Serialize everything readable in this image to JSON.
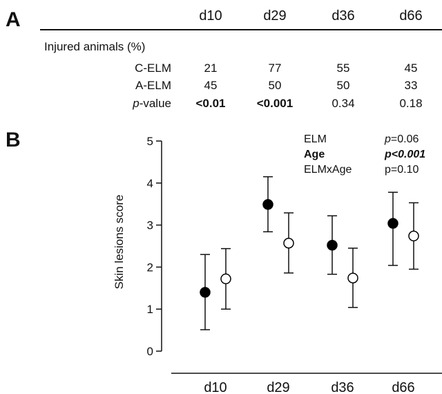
{
  "table": {
    "panel_letter": "A",
    "columns": [
      "d10",
      "d29",
      "d36",
      "d66"
    ],
    "section_label": "Injured animals (%)",
    "rows": [
      {
        "label": "C-ELM",
        "values": [
          "21",
          "77",
          "55",
          "45"
        ],
        "bold": [
          false,
          false,
          false,
          false
        ]
      },
      {
        "label": "A-ELM",
        "values": [
          "45",
          "50",
          "50",
          "33"
        ],
        "bold": [
          false,
          false,
          false,
          false
        ]
      },
      {
        "label_prefix": "p",
        "label_suffix": "-value",
        "values": [
          "<0.01",
          "<0.001",
          "0.34",
          "0.18"
        ],
        "bold": [
          true,
          true,
          false,
          false
        ]
      }
    ]
  },
  "stats": {
    "rows": [
      {
        "term": "ELM",
        "p_prefix": "p",
        "p_value": "=0.06",
        "bold": false,
        "italic_prefix": true
      },
      {
        "term": "Age",
        "p_prefix": "p",
        "p_value": "<0.001",
        "bold": true,
        "italic_prefix": true
      },
      {
        "term": "ELMxAge",
        "p_prefix": "p",
        "p_value": "=0.10",
        "bold": false,
        "italic_prefix": false
      }
    ]
  },
  "chart_data": {
    "type": "scatter",
    "panel_letter": "B",
    "title": "",
    "xlabel": "",
    "ylabel": "Skin lesions score",
    "categories": [
      "d10",
      "d29",
      "d36",
      "d66"
    ],
    "ylim": [
      0,
      5
    ],
    "yticks": [
      "0",
      "1",
      "2",
      "3",
      "4",
      "5"
    ],
    "grid": false,
    "series": [
      {
        "marker": "filled-circle",
        "color": "#000000",
        "values": [
          1.4,
          3.49,
          2.52,
          3.04
        ],
        "error_low": [
          0.51,
          2.84,
          1.83,
          2.04
        ],
        "error_high": [
          2.3,
          4.15,
          3.22,
          3.78
        ]
      },
      {
        "marker": "open-circle",
        "color": "#000000",
        "values": [
          1.72,
          2.57,
          1.74,
          2.74
        ],
        "error_low": [
          1.0,
          1.86,
          1.04,
          1.95
        ],
        "error_high": [
          2.44,
          3.29,
          2.45,
          3.53
        ]
      }
    ]
  }
}
